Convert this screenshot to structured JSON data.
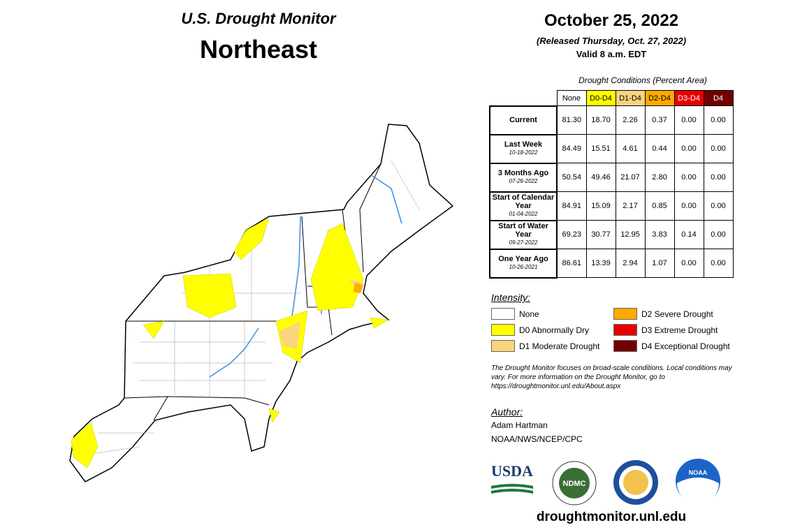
{
  "header": {
    "title": "U.S. Drought Monitor",
    "region": "Northeast"
  },
  "date": {
    "title": "October 25, 2022",
    "released": "(Released Thursday, Oct. 27, 2022)",
    "valid": "Valid 8 a.m. EDT"
  },
  "table": {
    "caption": "Drought Conditions (Percent Area)",
    "columns": [
      {
        "label": "None",
        "color": "#ffffff",
        "text_color": "#000000"
      },
      {
        "label": "D0-D4",
        "color": "#ffff00",
        "text_color": "#000000"
      },
      {
        "label": "D1-D4",
        "color": "#fcd37f",
        "text_color": "#000000"
      },
      {
        "label": "D2-D4",
        "color": "#ffaa00",
        "text_color": "#000000"
      },
      {
        "label": "D3-D4",
        "color": "#e60000",
        "text_color": "#ffffff"
      },
      {
        "label": "D4",
        "color": "#730000",
        "text_color": "#ffffff"
      }
    ],
    "rows": [
      {
        "label": "Current",
        "values": [
          "81.30",
          "18.70",
          "2.26",
          "0.37",
          "0.00",
          "0.00"
        ]
      },
      {
        "label": "Last Week",
        "date": "10-18-2022",
        "values": [
          "84.49",
          "15.51",
          "4.61",
          "0.44",
          "0.00",
          "0.00"
        ]
      },
      {
        "label": "3 Months Ago",
        "date": "07-26-2022",
        "values": [
          "50.54",
          "49.46",
          "21.07",
          "2.80",
          "0.00",
          "0.00"
        ]
      },
      {
        "label": "Start of Calendar Year",
        "date": "01-04-2022",
        "values": [
          "84.91",
          "15.09",
          "2.17",
          "0.85",
          "0.00",
          "0.00"
        ]
      },
      {
        "label": "Start of Water Year",
        "date": "09-27-2022",
        "values": [
          "69.23",
          "30.77",
          "12.95",
          "3.83",
          "0.14",
          "0.00"
        ]
      },
      {
        "label": "One Year Ago",
        "date": "10-26-2021",
        "values": [
          "86.61",
          "13.39",
          "2.94",
          "1.07",
          "0.00",
          "0.00"
        ]
      }
    ]
  },
  "legend": {
    "title": "Intensity:",
    "items": [
      {
        "label": "None",
        "color": "#ffffff"
      },
      {
        "label": "D0 Abnormally Dry",
        "color": "#ffff00"
      },
      {
        "label": "D1 Moderate Drought",
        "color": "#fcd37f"
      },
      {
        "label": "D2 Severe Drought",
        "color": "#ffaa00"
      },
      {
        "label": "D3 Extreme Drought",
        "color": "#e60000"
      },
      {
        "label": "D4 Exceptional Drought",
        "color": "#730000"
      }
    ]
  },
  "note": "The Drought Monitor focuses on broad-scale conditions. Local conditions may vary. For more information on the Drought Monitor, go to https://droughtmonitor.unl.edu/About.aspx",
  "author": {
    "heading": "Author:",
    "name": "Adam Hartman",
    "org": "NOAA/NWS/NCEP/CPC"
  },
  "logos": {
    "usda": "USDA",
    "ndmc": "NDMC",
    "noaa": "NOAA"
  },
  "footer": "droughtmonitor.unl.edu"
}
